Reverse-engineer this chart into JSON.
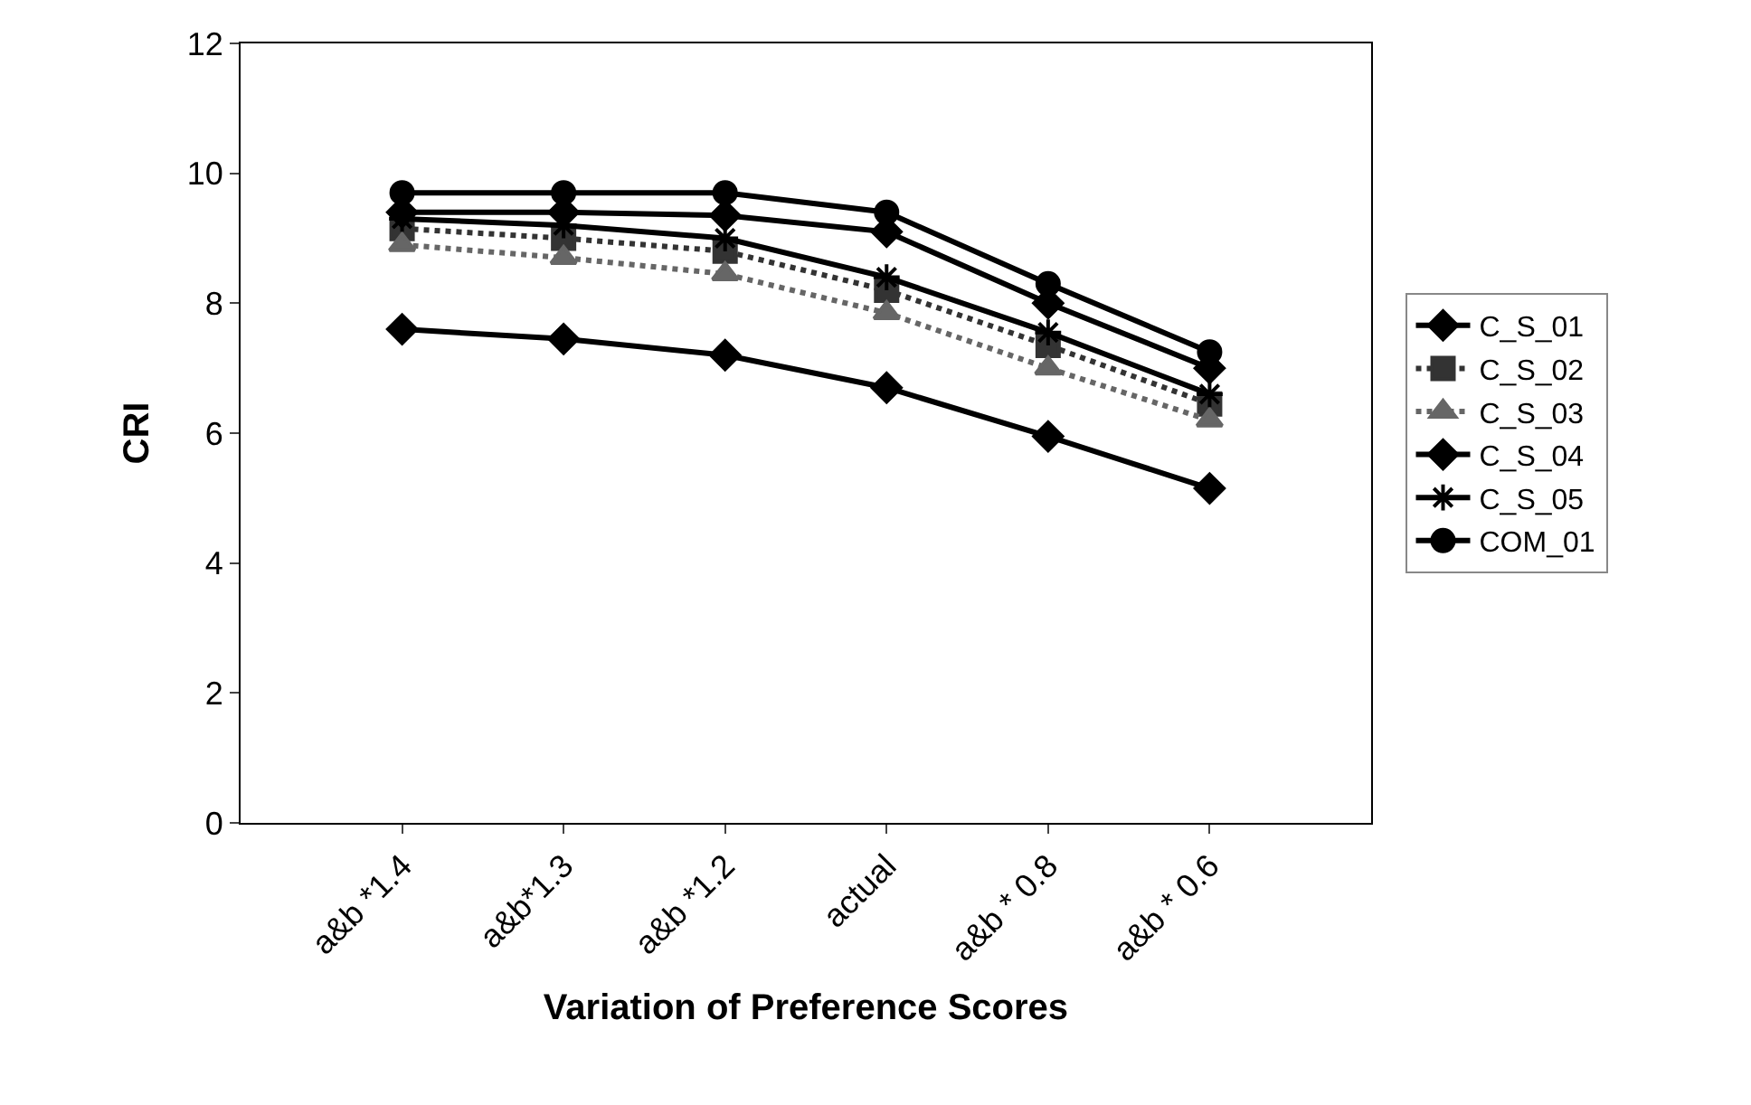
{
  "chart_data": {
    "type": "line",
    "xlabel": "Variation of Preference Scores",
    "ylabel": "CRI",
    "categories": [
      "a&b *1.4",
      "a&b*1.3",
      "a&b *1.2",
      "actual",
      "a&b * 0.8",
      "a&b * 0.6"
    ],
    "ylim": [
      0,
      12
    ],
    "yticks": [
      0,
      2,
      4,
      6,
      8,
      10,
      12
    ],
    "grid": false,
    "legend": "right",
    "series": [
      {
        "name": "C_S_01",
        "color": "#000000",
        "marker": "diamond",
        "line_style": "solid",
        "values": [
          7.6,
          7.45,
          7.2,
          6.7,
          5.95,
          5.15
        ]
      },
      {
        "name": "C_S_02",
        "color": "#333333",
        "marker": "square",
        "line_style": "dotted",
        "values": [
          9.15,
          9.0,
          8.8,
          8.2,
          7.35,
          6.45
        ]
      },
      {
        "name": "C_S_03",
        "color": "#666666",
        "marker": "triangle",
        "line_style": "dotted",
        "values": [
          8.9,
          8.7,
          8.45,
          7.85,
          7.0,
          6.2
        ]
      },
      {
        "name": "C_S_04",
        "color": "#000000",
        "marker": "diamond",
        "line_style": "solid",
        "values": [
          9.4,
          9.4,
          9.35,
          9.1,
          8.0,
          7.0
        ]
      },
      {
        "name": "C_S_05",
        "color": "#000000",
        "marker": "cross",
        "line_style": "solid",
        "values": [
          9.3,
          9.2,
          9.0,
          8.4,
          7.55,
          6.6
        ]
      },
      {
        "name": "COM_01",
        "color": "#000000",
        "marker": "circle",
        "line_style": "solid",
        "values": [
          9.7,
          9.7,
          9.7,
          9.4,
          8.3,
          7.25
        ]
      }
    ]
  }
}
